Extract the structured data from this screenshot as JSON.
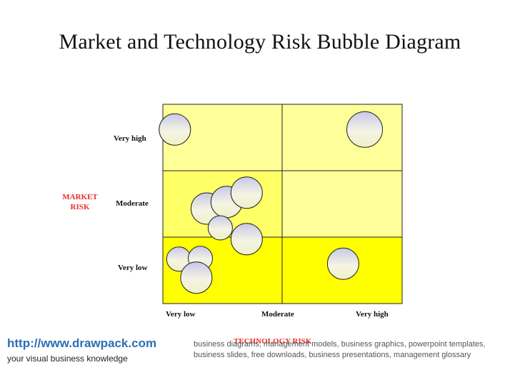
{
  "title": "Market and Technology Risk Bubble Diagram",
  "y_axis": {
    "label_line1": "MARKET",
    "label_line2": "RISK",
    "levels": [
      "Very high",
      "Moderate",
      "Very low"
    ]
  },
  "x_axis": {
    "label": "TECHNOLOGY RISK",
    "levels": [
      "Very low",
      "Moderate",
      "Very high"
    ]
  },
  "colors": {
    "label_accent": "#e8302e",
    "cell_light": "#ffff99",
    "cell_medium": "#ffff66",
    "cell_strong": "#ffff00",
    "bubble_top": "#c8c8e8",
    "bubble_bottom": "#f4f4d8"
  },
  "bubbles": [
    {
      "tech": 0.15,
      "market": 2.62
    },
    {
      "tech": 2.53,
      "market": 2.62
    },
    {
      "tech": 0.55,
      "market": 1.43
    },
    {
      "tech": 0.8,
      "market": 1.53
    },
    {
      "tech": 1.05,
      "market": 1.67
    },
    {
      "tech": 0.72,
      "market": 1.14
    },
    {
      "tech": 1.05,
      "market": 0.97
    },
    {
      "tech": 0.2,
      "market": 0.67
    },
    {
      "tech": 0.47,
      "market": 0.68
    },
    {
      "tech": 0.42,
      "market": 0.39
    },
    {
      "tech": 2.26,
      "market": 0.6
    }
  ],
  "footer": {
    "url": "http://www.drawpack.com",
    "tagline": "your visual business knowledge",
    "description": "business diagrams, management models, business graphics, powerpoint templates, business slides, free downloads, business presentations, management glossary"
  }
}
